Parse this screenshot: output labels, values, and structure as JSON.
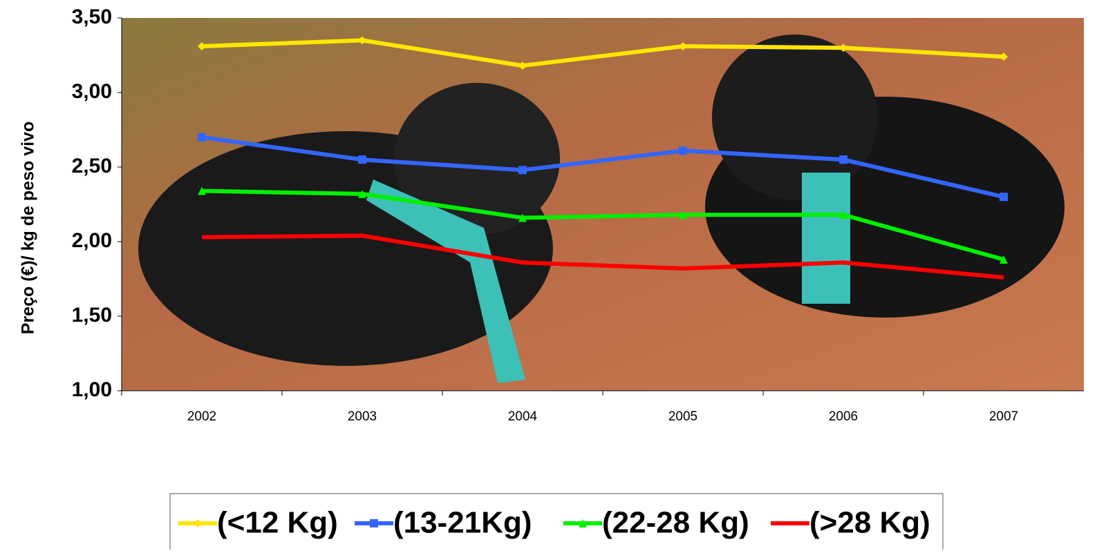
{
  "chart_data": {
    "type": "line",
    "y_label": "Preço (€)/ kg de peso vivo",
    "categories": [
      "2002",
      "2003",
      "2004",
      "2005",
      "2006",
      "2007"
    ],
    "series": [
      {
        "name": "(<12 Kg)",
        "color": "#ffe600",
        "marker": "diamond",
        "values": [
          3.31,
          3.35,
          3.18,
          3.31,
          3.3,
          3.24
        ]
      },
      {
        "name": "(13-21Kg)",
        "color": "#3366ff",
        "marker": "square",
        "values": [
          2.7,
          2.55,
          2.48,
          2.61,
          2.55,
          2.3
        ]
      },
      {
        "name": "(22-28 Kg)",
        "color": "#00ee00",
        "marker": "triangle",
        "values": [
          2.34,
          2.32,
          2.16,
          2.18,
          2.18,
          1.88
        ]
      },
      {
        "name": "(>28 Kg)",
        "color": "#ff0000",
        "marker": "none",
        "values": [
          2.03,
          2.04,
          1.86,
          1.82,
          1.86,
          1.76
        ]
      }
    ],
    "ylim": [
      1.0,
      3.5
    ],
    "yticks": [
      {
        "value": 1.0,
        "label": "1,00"
      },
      {
        "value": 1.5,
        "label": "1,50"
      },
      {
        "value": 2.0,
        "label": "2,00"
      },
      {
        "value": 2.5,
        "label": "2,50"
      },
      {
        "value": 3.0,
        "label": "3,00"
      },
      {
        "value": 3.5,
        "label": "3,50"
      }
    ],
    "legend": "bottom"
  }
}
